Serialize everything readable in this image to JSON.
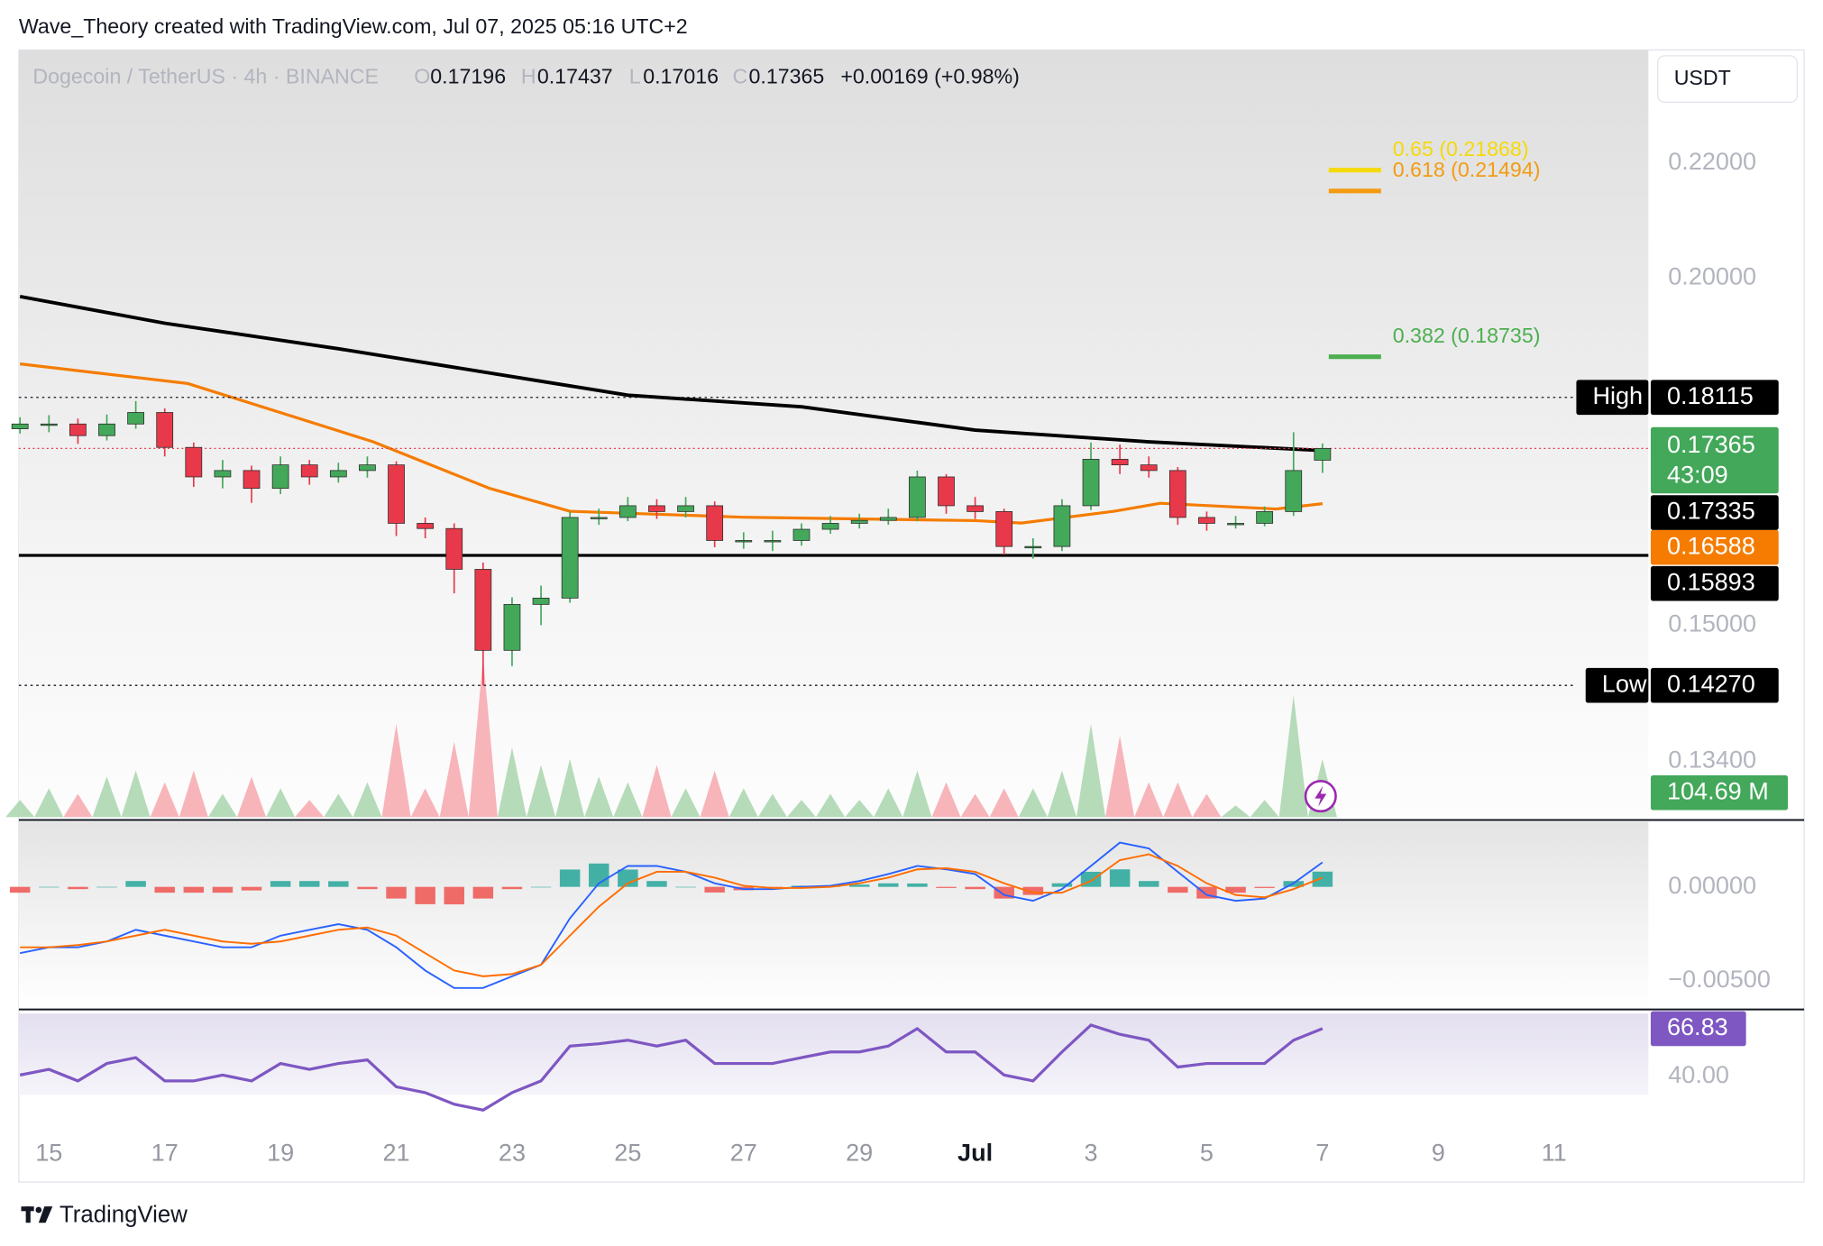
{
  "header": {
    "attribution": "Wave_Theory created with TradingView.com, Jul 07, 2025 05:16 UTC+2",
    "brand": "TradingView"
  },
  "chart_data": [
    {
      "type": "candlestick",
      "symbol": "Dogecoin / TetherUS · 4h · BINANCE",
      "ohlc_prefixes": [
        "O",
        "H",
        "L",
        "C"
      ],
      "change": "+0.00169 (+0.98%)",
      "currency": "USDT",
      "countdown": "43:09",
      "log_scale": true,
      "up_color": "#43a85a",
      "down_color": "#e8394a",
      "x": [
        14.5,
        15,
        15.5,
        16,
        16.5,
        17,
        17.5,
        18,
        18.5,
        19,
        19.5,
        20,
        20.5,
        21,
        21.5,
        22,
        22.5,
        23,
        23.5,
        24,
        24.5,
        25,
        25.5,
        26,
        26.5,
        27,
        27.5,
        28,
        28.5,
        29,
        29.5,
        30,
        30.5,
        31,
        31.5,
        32,
        32.5,
        33,
        33.5,
        34,
        34.5,
        35,
        35.5,
        36,
        36.5,
        37
      ],
      "open": [
        0.1765,
        0.1772,
        0.1772,
        0.1755,
        0.1772,
        0.1789,
        0.1738,
        0.1696,
        0.1705,
        0.168,
        0.1713,
        0.1696,
        0.1705,
        0.1713,
        0.1632,
        0.1625,
        0.1571,
        0.1469,
        0.1526,
        0.1534,
        0.164,
        0.164,
        0.1656,
        0.1648,
        0.1656,
        0.1609,
        0.1609,
        0.1609,
        0.1624,
        0.1632,
        0.1636,
        0.164,
        0.1696,
        0.1656,
        0.1648,
        0.1601,
        0.1601,
        0.1656,
        0.1721,
        0.1713,
        0.1705,
        0.164,
        0.1632,
        0.1632,
        0.1648,
        0.17196
      ],
      "high": [
        0.1782,
        0.1785,
        0.178,
        0.1786,
        0.1806,
        0.1795,
        0.1745,
        0.172,
        0.1712,
        0.1725,
        0.172,
        0.1716,
        0.1725,
        0.1718,
        0.164,
        0.1632,
        0.158,
        0.1535,
        0.155,
        0.1648,
        0.1652,
        0.1668,
        0.1665,
        0.1668,
        0.1662,
        0.162,
        0.1622,
        0.1632,
        0.1642,
        0.1645,
        0.1652,
        0.1705,
        0.17,
        0.1668,
        0.1652,
        0.1612,
        0.1665,
        0.1745,
        0.1742,
        0.1725,
        0.171,
        0.1648,
        0.1642,
        0.1655,
        0.176,
        0.17437
      ],
      "low": [
        0.1758,
        0.176,
        0.1743,
        0.1748,
        0.1765,
        0.1725,
        0.1682,
        0.168,
        0.166,
        0.1672,
        0.1685,
        0.1688,
        0.1695,
        0.1615,
        0.1612,
        0.154,
        0.1427,
        0.145,
        0.15,
        0.1528,
        0.163,
        0.1635,
        0.1638,
        0.164,
        0.16,
        0.1598,
        0.1595,
        0.1602,
        0.1618,
        0.1625,
        0.163,
        0.1635,
        0.1645,
        0.1638,
        0.159,
        0.1585,
        0.1595,
        0.165,
        0.17,
        0.1695,
        0.163,
        0.1622,
        0.1625,
        0.1628,
        0.1642,
        0.17016
      ],
      "close": [
        0.1772,
        0.1772,
        0.1755,
        0.1772,
        0.1789,
        0.1738,
        0.1696,
        0.1705,
        0.168,
        0.1713,
        0.1696,
        0.1705,
        0.1713,
        0.1632,
        0.1625,
        0.1571,
        0.1469,
        0.1526,
        0.1534,
        0.164,
        0.164,
        0.1656,
        0.1648,
        0.1656,
        0.1609,
        0.1609,
        0.1609,
        0.1624,
        0.1632,
        0.1636,
        0.164,
        0.1696,
        0.1656,
        0.1648,
        0.1601,
        0.1601,
        0.1656,
        0.1721,
        0.1713,
        0.1705,
        0.164,
        0.1632,
        0.1632,
        0.1648,
        0.1705,
        0.17365
      ],
      "series": [
        {
          "color": "#000000",
          "x": [
            14.5,
            17,
            20,
            25,
            28,
            31,
            34,
            37
          ],
          "values": [
            0.19694,
            0.19263,
            0.1886,
            0.18148,
            0.17975,
            0.1763,
            0.1746,
            0.17335
          ]
        },
        {
          "color": "#f57c00",
          "x": [
            14.5,
            17.4,
            20.6,
            22.6,
            24,
            27,
            31,
            31.8,
            33.4,
            34.2,
            36.2,
            37
          ],
          "values": [
            0.18625,
            0.18324,
            0.17461,
            0.16803,
            0.16484,
            0.16403,
            0.16357,
            0.16324,
            0.16484,
            0.16594,
            0.16515,
            0.16588
          ]
        }
      ],
      "markers": [
        {
          "tag": "High",
          "value": 0.18115
        },
        {
          "tag": "Low",
          "value": {
            "value": 0.1427,
            "label": "0.14270"
          }
        }
      ],
      "support": 0.15893,
      "fib_levels": [
        {
          "label": "0.65 (0.21868)",
          "value": 0.21868,
          "color": "#f5d90a"
        },
        {
          "label": "0.618 (0.21494)",
          "value": 0.21494,
          "color": "#f39c12"
        },
        {
          "label": "0.382 (0.18735)",
          "value": 0.18735,
          "color": "#4caf50"
        }
      ],
      "xlim": [
        14.48,
        42.63
      ],
      "xticks": [
        15,
        17,
        19,
        21,
        23,
        25,
        27,
        29,
        {
          "value": 31,
          "label": "Jul"
        },
        {
          "value": 33,
          "label": "3"
        },
        {
          "value": 35,
          "label": "5"
        },
        {
          "value": 37,
          "label": "7"
        },
        {
          "value": 39,
          "label": "9"
        },
        {
          "value": 41,
          "label": "11"
        }
      ],
      "ylim": [
        0.1277,
        0.2411
      ],
      "yticks": [
        {
          "value": 0.22,
          "label": "0.22000"
        },
        {
          "value": 0.2,
          "label": "0.20000"
        },
        {
          "value": 0.15,
          "label": "0.15000"
        },
        {
          "value": 0.134,
          "label": "0.13400"
        }
      ]
    },
    {
      "type": "volume",
      "up_color": "#a8d5ad",
      "down_color": "#f6a8ae",
      "values": [
        31,
        52,
        42,
        73,
        84,
        63,
        84,
        42,
        73,
        52,
        31,
        42,
        63,
        168,
        52,
        136,
        290,
        126,
        94,
        105,
        73,
        63,
        94,
        52,
        84,
        52,
        42,
        31,
        42,
        31,
        52,
        84,
        63,
        42,
        52,
        52,
        84,
        168,
        147,
        63,
        63,
        42,
        21,
        31,
        220,
        104.69
      ],
      "value_labels": [
        null,
        null,
        null,
        null,
        null,
        null,
        null,
        null,
        null,
        null,
        null,
        null,
        null,
        null,
        null,
        null,
        null,
        null,
        null,
        null,
        null,
        null,
        null,
        null,
        null,
        null,
        null,
        null,
        null,
        null,
        null,
        null,
        null,
        null,
        null,
        null,
        null,
        null,
        null,
        null,
        null,
        null,
        null,
        null,
        null,
        "104.69 M"
      ],
      "ylim": [
        0,
        300
      ]
    },
    {
      "type": "macd",
      "histogram": [
        -0.00031,
        0,
        -0.00012,
        0,
        0.00031,
        -0.00031,
        -0.00031,
        -0.00031,
        -0.00019,
        0.00031,
        0.00031,
        0.0003,
        -0.00012,
        -0.00062,
        -0.00092,
        -0.00093,
        -0.00062,
        -0.00012,
        0,
        0.00092,
        0.00124,
        0.00092,
        0.00031,
        0,
        -0.0003,
        -0.00018,
        -6e-05,
        6e-05,
        6e-05,
        0.00012,
        0.00019,
        0.00018,
        -6e-05,
        -0.00012,
        -0.00062,
        -0.00043,
        0.00019,
        0.0008,
        0.00093,
        0.00031,
        -0.00031,
        -0.00062,
        -0.00031,
        -6e-05,
        0.00031,
        0.00081
      ],
      "up_color": "#26a69a",
      "down_color": "#ef5350",
      "series": [
        {
          "color": "#2962ff",
          "values": [
            -0.00352,
            -0.00321,
            -0.00321,
            -0.0029,
            -0.00228,
            -0.00259,
            -0.0029,
            -0.00321,
            -0.00321,
            -0.00259,
            -0.00228,
            -0.00198,
            -0.00228,
            -0.00321,
            -0.00444,
            -0.00537,
            -0.00537,
            -0.00475,
            -0.00414,
            -0.00167,
            0.00019,
            0.00111,
            0.00111,
            0.0008,
            0.00019,
            -0.00012,
            -0.00012,
            0,
            6e-05,
            0.00031,
            0.00068,
            0.00111,
            0.00093,
            0.00068,
            -0.00043,
            -0.00074,
            -0.00012,
            0.00111,
            0.00235,
            0.00204,
            0.0008,
            -0.00043,
            -0.00074,
            -0.00062,
            0.00019,
            0.0013
          ]
        },
        {
          "color": "#ff6d00",
          "values": [
            -0.00321,
            -0.00321,
            -0.00309,
            -0.0029,
            -0.00259,
            -0.00228,
            -0.00259,
            -0.0029,
            -0.00302,
            -0.0029,
            -0.00259,
            -0.00228,
            -0.00216,
            -0.00259,
            -0.00352,
            -0.00444,
            -0.00475,
            -0.00463,
            -0.00414,
            -0.00259,
            -0.00105,
            0.00019,
            0.0008,
            0.0008,
            0.00049,
            6e-05,
            -6e-05,
            -6e-05,
            0,
            0.00019,
            0.00049,
            0.00093,
            0.00099,
            0.0008,
            0.00019,
            -0.00031,
            -0.00031,
            0.00031,
            0.00142,
            0.00173,
            0.00111,
            0.00019,
            -0.00043,
            -0.00056,
            -0.00012,
            0.00049
          ]
        }
      ],
      "ylim": [
        -0.00648,
        0.003457
      ],
      "yticks": [
        {
          "value": 0,
          "label": "0.00000"
        },
        {
          "value": -0.005,
          "label": "−0.00500"
        }
      ]
    },
    {
      "type": "line",
      "series": [
        {
          "color": "#7e57c2",
          "values": [
            40.7,
            43.9,
            37.4,
            47.2,
            50.5,
            37.4,
            37.4,
            40.7,
            37.4,
            47.2,
            43.9,
            47.2,
            49.2,
            34.1,
            30.8,
            24.3,
            21,
            30.8,
            37.4,
            57,
            58.3,
            60.3,
            57,
            60.3,
            47.2,
            47.2,
            47.2,
            50.5,
            53.7,
            53.7,
            57,
            66.8,
            53.7,
            53.7,
            40.7,
            37.4,
            53.7,
            68.8,
            63.6,
            60.3,
            45.2,
            47.2,
            47.2,
            47.2,
            60.3,
            66.83
          ]
        }
      ],
      "ylim": [
        14.5,
        76.6
      ],
      "yticks": [
        {
          "value": 40,
          "label": "40.00"
        }
      ]
    }
  ]
}
